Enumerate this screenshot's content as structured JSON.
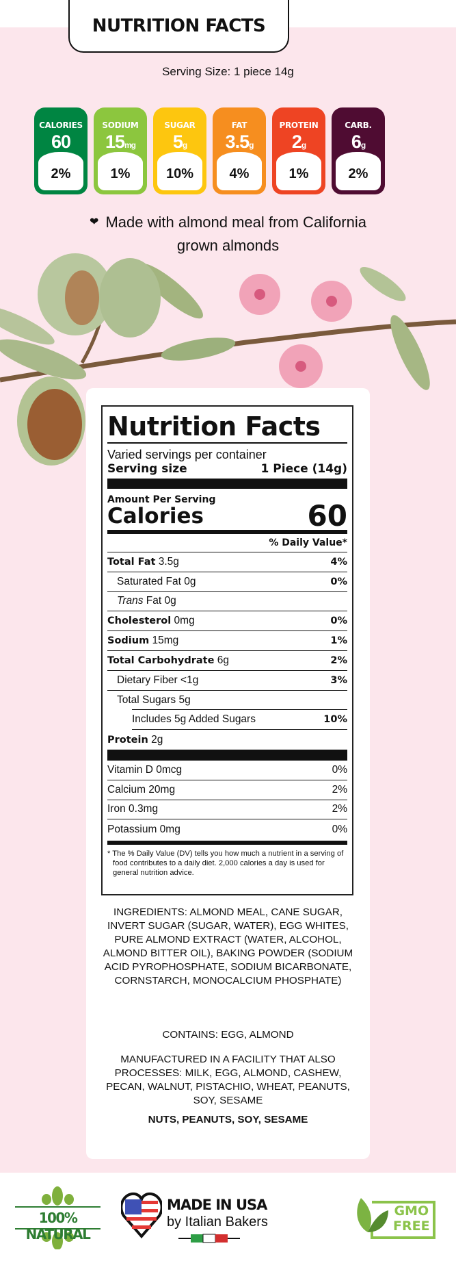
{
  "header": {
    "title": "NUTRITION FACTS",
    "serving_size": "Serving Size: 1 piece 14g"
  },
  "badges": [
    {
      "label": "CALORIES",
      "value": "60",
      "unit": "",
      "percent": "2%",
      "color": "#008542"
    },
    {
      "label": "SODIUM",
      "value": "15",
      "unit": "mg",
      "percent": "1%",
      "color": "#8cc63e"
    },
    {
      "label": "SUGAR",
      "value": "5",
      "unit": "g",
      "percent": "10%",
      "color": "#fdc60f"
    },
    {
      "label": "FAT",
      "value": "3.5",
      "unit": "g",
      "percent": "4%",
      "color": "#f68e1f"
    },
    {
      "label": "PROTEIN",
      "value": "2",
      "unit": "g",
      "percent": "1%",
      "color": "#ee4423"
    },
    {
      "label": "CARB.",
      "value": "6",
      "unit": "g",
      "percent": "2%",
      "color": "#4f0c32"
    }
  ],
  "tagline": {
    "icon": "heart-icon",
    "line1": "Made with almond meal from California",
    "line2": "grown almonds"
  },
  "label": {
    "title": "Nutrition Facts",
    "servings": "Varied servings per container",
    "serving_size_label": "Serving size",
    "serving_size_value": "1 Piece (14g)",
    "amount_per_serving": "Amount Per Serving",
    "calories_label": "Calories",
    "calories_value": "60",
    "dv_header": "% Daily Value*",
    "rows": [
      {
        "bold": "Total Fat",
        "text": "3.5g",
        "dv": "4%",
        "indent": 0
      },
      {
        "bold": "",
        "text": "Saturated Fat 0g",
        "dv": "0%",
        "indent": 1
      },
      {
        "bold": "",
        "italic": "Trans",
        "text": "Fat 0g",
        "dv": "",
        "indent": 1
      },
      {
        "bold": "Cholesterol",
        "text": "0mg",
        "dv": "0%",
        "indent": 0
      },
      {
        "bold": "Sodium",
        "text": "15mg",
        "dv": "1%",
        "indent": 0
      },
      {
        "bold": "Total Carbohydrate",
        "text": "6g",
        "dv": "2%",
        "indent": 0
      },
      {
        "bold": "",
        "text": "Dietary Fiber <1g",
        "dv": "3%",
        "indent": 1
      },
      {
        "bold": "",
        "text": "Total Sugars 5g",
        "dv": "",
        "indent": 1
      },
      {
        "bold": "",
        "text": "Includes 5g Added Sugars",
        "dv": "10%",
        "indent": 2
      },
      {
        "bold": "Protein",
        "text": "2g",
        "dv": "",
        "indent": 0
      }
    ],
    "vitamins": [
      {
        "text": "Vitamin D 0mcg",
        "dv": "0%"
      },
      {
        "text": "Calcium 20mg",
        "dv": "2%"
      },
      {
        "text": "Iron 0.3mg",
        "dv": "2%"
      },
      {
        "text": "Potassium 0mg",
        "dv": "0%"
      }
    ],
    "footnote": "* The % Daily Value (DV) tells you how much a nutrient in a serving of food contributes to a daily diet. 2,000 calories a day is used for general nutrition advice."
  },
  "ingredients": "INGREDIENTS: ALMOND MEAL, CANE SUGAR, INVERT SUGAR (SUGAR, WATER), EGG WHITES, PURE ALMOND EXTRACT (WATER, ALCOHOL, ALMOND BITTER OIL), BAKING POWDER (SODIUM ACID PYROPHOSPHATE, SODIUM BICARBONATE, CORNSTARCH, MONOCALCIUM PHOSPHATE)",
  "contains": "CONTAINS: EGG, ALMOND",
  "facility": "MANUFACTURED IN A FACILITY THAT ALSO PROCESSES: MILK, EGG, ALMOND, CASHEW, PECAN, WALNUT, PISTACHIO, WHEAT, PEANUTS, SOY, SESAME",
  "allergens_bold": "NUTS, PEANUTS, SOY, SESAME",
  "footer": {
    "natural": "100% NATURAL",
    "usa_line1": "MADE IN USA",
    "usa_line2": "by Italian Bakers",
    "gmo_line1": "GMO",
    "gmo_line2": "FREE"
  }
}
